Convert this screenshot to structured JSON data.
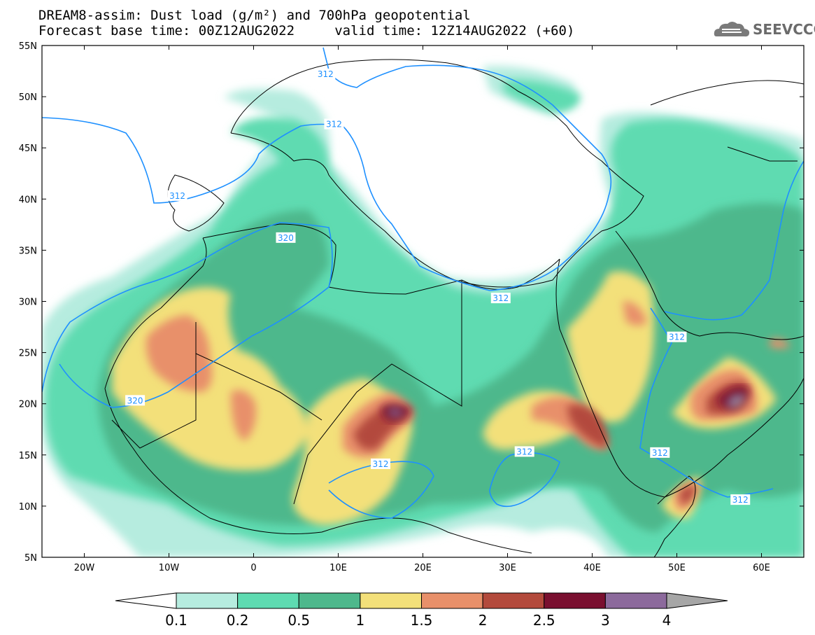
{
  "title_line1": "DREAM8-assim: Dust load (g/m²) and 700hPa geopotential",
  "title_line2": "Forecast base time: 00Z12AUG2022     valid time: 12Z14AUG2022 (+60)",
  "logo_text": "SEEVCCC",
  "lat_labels": [
    "55N",
    "50N",
    "45N",
    "40N",
    "35N",
    "30N",
    "25N",
    "20N",
    "15N",
    "10N",
    "5N"
  ],
  "lon_labels": [
    "20W",
    "10W",
    "0",
    "10E",
    "20E",
    "30E",
    "40E",
    "50E",
    "60E"
  ],
  "colorbar": {
    "labels": [
      "0.1",
      "0.2",
      "0.5",
      "1",
      "1.5",
      "2",
      "2.5",
      "3",
      "4"
    ],
    "colors": [
      "#b6ecdf",
      "#5edbb1",
      "#4eb88c",
      "#f3e07a",
      "#e8906a",
      "#b34a3c",
      "#7a1030",
      "#8c6a9c"
    ],
    "under_color": "#ffffff",
    "over_color": "#a6a6a6"
  },
  "isolines": [
    {
      "label": "312",
      "x_lon": -9,
      "y_lat": 40.3
    },
    {
      "label": "320",
      "x_lon": 3.8,
      "y_lat": 36.2
    },
    {
      "label": "312",
      "x_lon": 8.5,
      "y_lat": 52.2
    },
    {
      "label": "312",
      "x_lon": 9.5,
      "y_lat": 47.3
    },
    {
      "label": "320",
      "x_lon": -14,
      "y_lat": 20.3
    },
    {
      "label": "312",
      "x_lon": 29.2,
      "y_lat": 30.3
    },
    {
      "label": "312",
      "x_lon": 15,
      "y_lat": 14.1
    },
    {
      "label": "312",
      "x_lon": 32,
      "y_lat": 15.3
    },
    {
      "label": "312",
      "x_lon": 50,
      "y_lat": 26.5
    },
    {
      "label": "312",
      "x_lon": 48,
      "y_lat": 15.2
    },
    {
      "label": "312",
      "x_lon": 57.5,
      "y_lat": 10.6
    }
  ],
  "isoline_color": "#1e90ff"
}
